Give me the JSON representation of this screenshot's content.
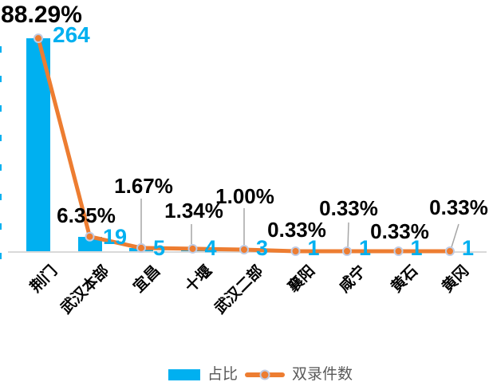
{
  "chart_data": {
    "type": "bar",
    "subtype": "combo-bar-line",
    "categories": [
      "荆门",
      "武汉本部",
      "宜昌",
      "十堰",
      "武汉二部",
      "襄阳",
      "咸宁",
      "黄石",
      "黄冈"
    ],
    "series": [
      {
        "name": "占比",
        "type": "bar",
        "unit": "%",
        "values": [
          88.29,
          6.35,
          1.67,
          1.34,
          1.0,
          0.33,
          0.33,
          0.33,
          0.33
        ],
        "labels": [
          "88.29%",
          "6.35%",
          "1.67%",
          "1.34%",
          "1.00%",
          "0.33%",
          "0.33%",
          "0.33%",
          "0.33%"
        ],
        "color": "#00B0F0"
      },
      {
        "name": "双录件数",
        "type": "line",
        "values": [
          264,
          19,
          5,
          4,
          3,
          1,
          1,
          1,
          1
        ],
        "labels": [
          "264",
          "19",
          "5",
          "4",
          "3",
          "1",
          "1",
          "1",
          "1"
        ],
        "color": "#ED7D31",
        "marker_ring_color": "#BFCBE3"
      }
    ],
    "title": "",
    "xlabel": "",
    "ylabel": "",
    "grid": false,
    "legend_position": "bottom",
    "legend": [
      {
        "label": "占比",
        "swatch": "bar",
        "color": "#00B0F0"
      },
      {
        "label": "双录件数",
        "swatch": "line",
        "color": "#ED7D31"
      }
    ],
    "colors": {
      "bar": "#00B0F0",
      "line": "#ED7D31",
      "marker_ring": "#BFCBE3",
      "axis_line": "#D9D9D9",
      "leader_line": "#A6A6A6",
      "percent_label_text": "#000000",
      "count_label_text": "#00B0F0",
      "category_text": "#000000",
      "legend_text": "#595959"
    },
    "left_edge_axis_remnants": {
      "count": 8,
      "color": "#00B0F0"
    }
  }
}
